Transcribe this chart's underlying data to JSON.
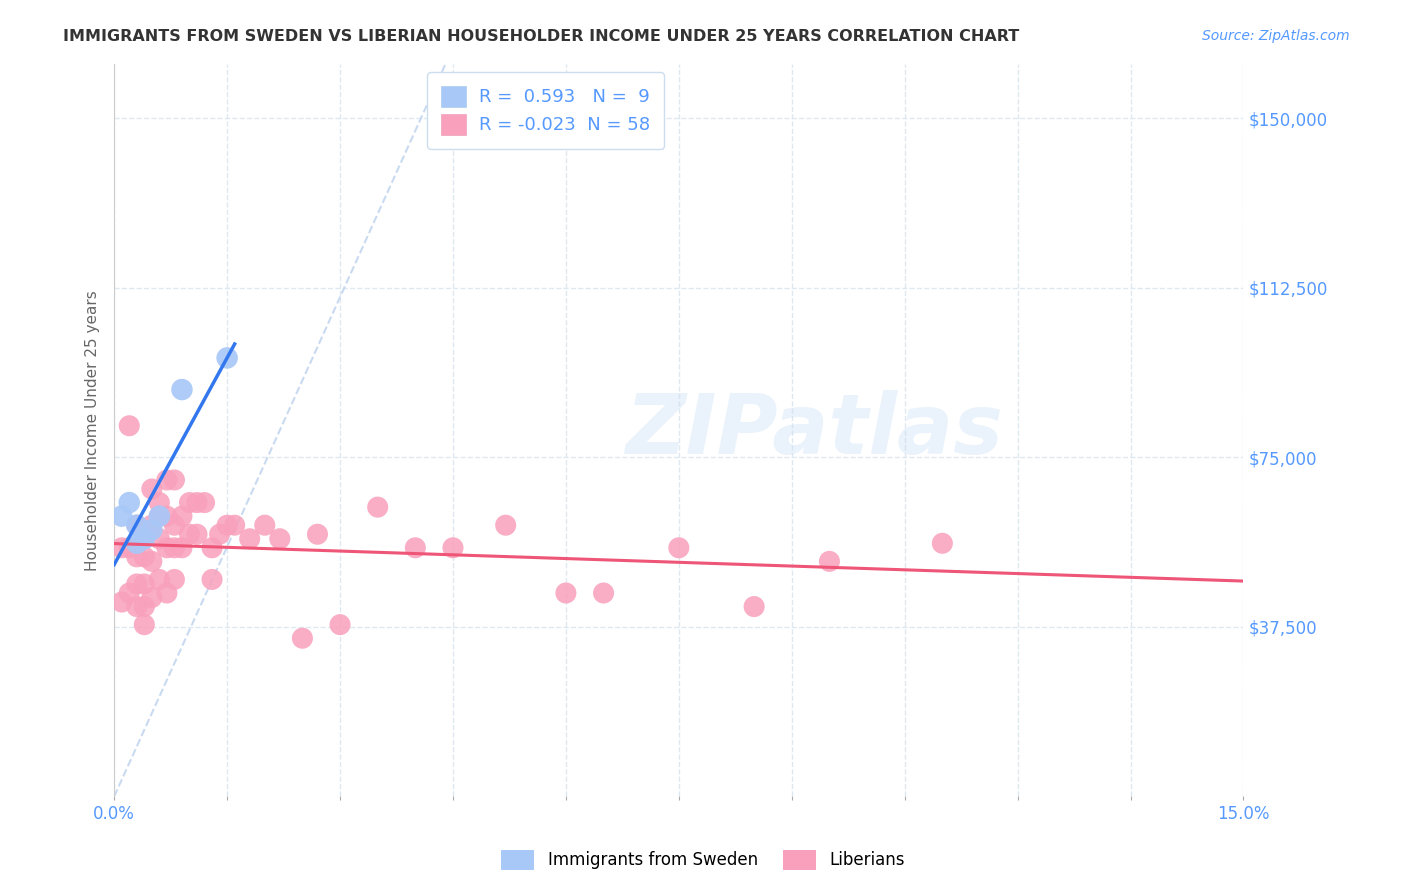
{
  "title": "IMMIGRANTS FROM SWEDEN VS LIBERIAN HOUSEHOLDER INCOME UNDER 25 YEARS CORRELATION CHART",
  "source": "Source: ZipAtlas.com",
  "ylabel": "Householder Income Under 25 years",
  "x_min": 0.0,
  "x_max": 0.15,
  "y_min": 0,
  "y_max": 162000,
  "x_ticks": [
    0.0,
    0.015,
    0.03,
    0.045,
    0.06,
    0.075,
    0.09,
    0.105,
    0.12,
    0.135,
    0.15
  ],
  "x_tick_labels_show": [
    "0.0%",
    "",
    "",
    "",
    "",
    "",
    "",
    "",
    "",
    "",
    "15.0%"
  ],
  "y_ticks": [
    37500,
    75000,
    112500,
    150000
  ],
  "y_tick_labels": [
    "$37,500",
    "$75,000",
    "$112,500",
    "$150,000"
  ],
  "R_sweden": 0.593,
  "N_sweden": 9,
  "R_liberian": -0.023,
  "N_liberian": 58,
  "color_sweden": "#a8c8f8",
  "color_liberian": "#f8a0bc",
  "color_sweden_line": "#3377ee",
  "color_liberian_line": "#ee5577",
  "color_diagonal": "#c0d4ee",
  "color_tick_labels": "#5599ff",
  "legend_label_sweden": "Immigrants from Sweden",
  "legend_label_liberian": "Liberians",
  "sweden_x": [
    0.001,
    0.002,
    0.003,
    0.003,
    0.004,
    0.005,
    0.006,
    0.009,
    0.015
  ],
  "sweden_y": [
    62000,
    65000,
    56000,
    60000,
    57000,
    59000,
    62000,
    90000,
    97000
  ],
  "liberian_x": [
    0.001,
    0.001,
    0.002,
    0.002,
    0.002,
    0.003,
    0.003,
    0.003,
    0.003,
    0.004,
    0.004,
    0.004,
    0.004,
    0.004,
    0.005,
    0.005,
    0.005,
    0.005,
    0.006,
    0.006,
    0.006,
    0.006,
    0.007,
    0.007,
    0.007,
    0.007,
    0.008,
    0.008,
    0.008,
    0.008,
    0.009,
    0.009,
    0.01,
    0.01,
    0.011,
    0.011,
    0.012,
    0.013,
    0.013,
    0.014,
    0.015,
    0.016,
    0.018,
    0.02,
    0.022,
    0.025,
    0.027,
    0.03,
    0.035,
    0.04,
    0.045,
    0.052,
    0.06,
    0.065,
    0.075,
    0.085,
    0.095,
    0.11
  ],
  "liberian_y": [
    55000,
    43000,
    82000,
    55000,
    45000,
    60000,
    53000,
    47000,
    42000,
    58000,
    53000,
    47000,
    42000,
    38000,
    68000,
    60000,
    52000,
    44000,
    65000,
    62000,
    57000,
    48000,
    70000,
    62000,
    55000,
    45000,
    70000,
    60000,
    55000,
    48000,
    62000,
    55000,
    65000,
    58000,
    65000,
    58000,
    65000,
    55000,
    48000,
    58000,
    60000,
    60000,
    57000,
    60000,
    57000,
    35000,
    58000,
    38000,
    64000,
    55000,
    55000,
    60000,
    45000,
    45000,
    55000,
    42000,
    52000,
    56000
  ],
  "watermark": "ZIPatlas",
  "background_color": "#ffffff",
  "grid_color": "#dde8f0"
}
